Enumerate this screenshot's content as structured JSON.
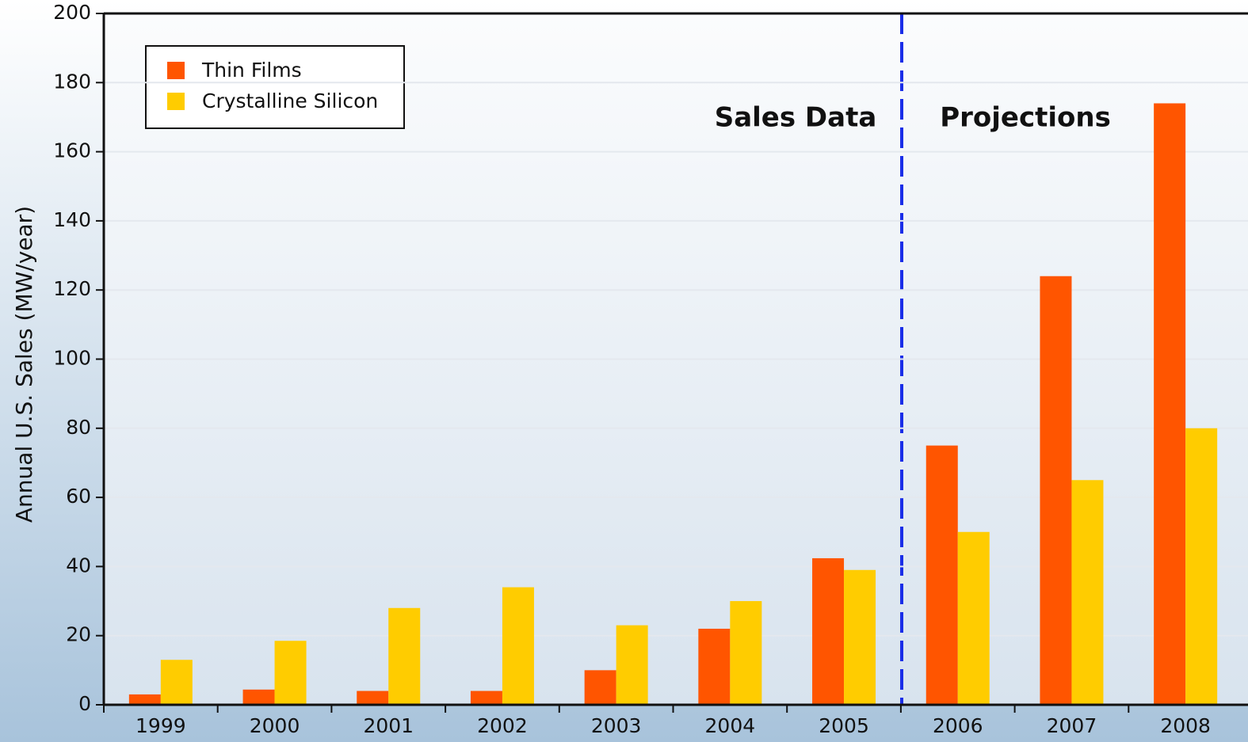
{
  "chart_data": {
    "type": "bar",
    "y_label": "Annual U.S. Sales (MW/year)",
    "annotations": [
      "Sales Data",
      "Projections"
    ],
    "categories": [
      "1999",
      "2000",
      "2001",
      "2002",
      "2003",
      "2004",
      "2005",
      "2006",
      "2007",
      "2008"
    ],
    "series": [
      {
        "name": "Thin Films",
        "color": "#ff5500",
        "values": [
          3,
          4.4,
          4,
          4,
          10,
          22,
          42.4,
          75,
          124,
          174
        ]
      },
      {
        "name": "Crystalline Silicon",
        "color": "#ffcc00",
        "values": [
          13,
          18.5,
          28,
          34,
          23,
          30,
          39,
          50,
          65,
          80
        ]
      }
    ],
    "ylim": [
      0,
      200
    ],
    "yticks": [
      0,
      20,
      40,
      60,
      80,
      100,
      120,
      140,
      160,
      180,
      200
    ],
    "grid": true,
    "legend": "upper left"
  }
}
